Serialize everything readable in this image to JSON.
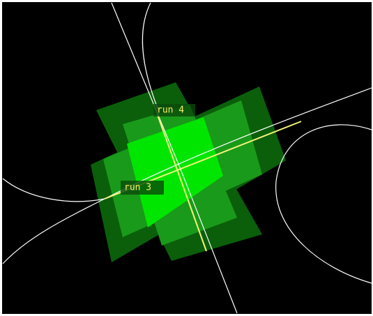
{
  "labels": [
    "run 4",
    "run 3"
  ]
}
